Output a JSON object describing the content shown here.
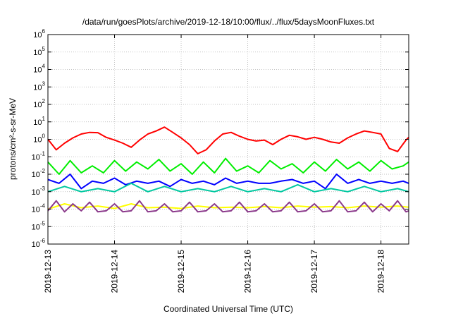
{
  "chart_data": {
    "type": "line",
    "title": "/data/run/goesPlots/archive/2019-12-18/10:00/flux/../flux/5daysMoonFluxes.txt",
    "xlabel": "Coordinated Universal Time (UTC)",
    "ylabel": "protons/cm²-s-sr-MeV",
    "y_scale": "log",
    "ylim": [
      1e-06,
      1000000.0
    ],
    "y_ticks": [
      {
        "base": "10",
        "exp": "-6",
        "value": 1e-06
      },
      {
        "base": "10",
        "exp": "-5",
        "value": 1e-05
      },
      {
        "base": "10",
        "exp": "-4",
        "value": 0.0001
      },
      {
        "base": "10",
        "exp": "-3",
        "value": 0.001
      },
      {
        "base": "10",
        "exp": "-2",
        "value": 0.01
      },
      {
        "base": "10",
        "exp": "-1",
        "value": 0.1
      },
      {
        "base": "10",
        "exp": "0",
        "value": 1
      },
      {
        "base": "10",
        "exp": "1",
        "value": 10
      },
      {
        "base": "10",
        "exp": "2",
        "value": 100
      },
      {
        "base": "10",
        "exp": "3",
        "value": 1000
      },
      {
        "base": "10",
        "exp": "4",
        "value": 10000
      },
      {
        "base": "10",
        "exp": "5",
        "value": 100000
      },
      {
        "base": "10",
        "exp": "6",
        "value": 1000000
      }
    ],
    "x_ticks": [
      "2019-12-13",
      "2019-12-14",
      "2019-12-15",
      "2019-12-16",
      "2019-12-17",
      "2019-12-18"
    ],
    "xlim": [
      "2019-12-13T00:00",
      "2019-12-18T10:00"
    ],
    "grid": true,
    "legend": "none",
    "series": [
      {
        "color": "#ff0000",
        "x": [
          "2019-12-13T00:00",
          "2019-12-13T03:00",
          "2019-12-13T06:00",
          "2019-12-13T09:00",
          "2019-12-13T12:00",
          "2019-12-13T15:00",
          "2019-12-13T18:00",
          "2019-12-13T21:00",
          "2019-12-14T00:00",
          "2019-12-14T03:00",
          "2019-12-14T06:00",
          "2019-12-14T09:00",
          "2019-12-14T12:00",
          "2019-12-14T15:00",
          "2019-12-14T18:00",
          "2019-12-14T21:00",
          "2019-12-15T00:00",
          "2019-12-15T03:00",
          "2019-12-15T06:00",
          "2019-12-15T09:00",
          "2019-12-15T12:00",
          "2019-12-15T15:00",
          "2019-12-15T18:00",
          "2019-12-15T21:00",
          "2019-12-16T00:00",
          "2019-12-16T03:00",
          "2019-12-16T06:00",
          "2019-12-16T09:00",
          "2019-12-16T12:00",
          "2019-12-16T15:00",
          "2019-12-16T18:00",
          "2019-12-16T21:00",
          "2019-12-17T00:00",
          "2019-12-17T03:00",
          "2019-12-17T06:00",
          "2019-12-17T09:00",
          "2019-12-17T12:00",
          "2019-12-17T15:00",
          "2019-12-17T18:00",
          "2019-12-17T21:00",
          "2019-12-18T00:00",
          "2019-12-18T03:00",
          "2019-12-18T06:00",
          "2019-12-18T09:00",
          "2019-12-18T10:00"
        ],
        "values": [
          1.0,
          0.25,
          0.6,
          1.2,
          2.0,
          2.5,
          2.4,
          1.3,
          0.9,
          0.6,
          0.35,
          0.9,
          2.0,
          3.0,
          5.0,
          2.5,
          1.2,
          0.5,
          0.15,
          0.25,
          0.8,
          2.0,
          2.5,
          1.5,
          1.0,
          0.8,
          0.9,
          0.5,
          1.0,
          1.7,
          1.4,
          1.0,
          1.3,
          1.0,
          0.7,
          0.6,
          1.2,
          2.0,
          3.0,
          2.5,
          2.0,
          0.3,
          0.2,
          0.9,
          1.3
        ]
      },
      {
        "color": "#00ee00",
        "x": [
          "2019-12-13T00:00",
          "2019-12-13T04:00",
          "2019-12-13T08:00",
          "2019-12-13T12:00",
          "2019-12-13T16:00",
          "2019-12-13T20:00",
          "2019-12-14T00:00",
          "2019-12-14T04:00",
          "2019-12-14T08:00",
          "2019-12-14T12:00",
          "2019-12-14T16:00",
          "2019-12-14T20:00",
          "2019-12-15T00:00",
          "2019-12-15T04:00",
          "2019-12-15T08:00",
          "2019-12-15T12:00",
          "2019-12-15T16:00",
          "2019-12-15T20:00",
          "2019-12-16T00:00",
          "2019-12-16T04:00",
          "2019-12-16T08:00",
          "2019-12-16T12:00",
          "2019-12-16T16:00",
          "2019-12-16T20:00",
          "2019-12-17T00:00",
          "2019-12-17T04:00",
          "2019-12-17T08:00",
          "2019-12-17T12:00",
          "2019-12-17T16:00",
          "2019-12-17T20:00",
          "2019-12-18T00:00",
          "2019-12-18T04:00",
          "2019-12-18T08:00",
          "2019-12-18T10:00"
        ],
        "values": [
          0.05,
          0.01,
          0.06,
          0.012,
          0.03,
          0.012,
          0.06,
          0.015,
          0.05,
          0.02,
          0.07,
          0.015,
          0.04,
          0.01,
          0.05,
          0.012,
          0.08,
          0.015,
          0.03,
          0.012,
          0.06,
          0.02,
          0.04,
          0.012,
          0.05,
          0.015,
          0.07,
          0.02,
          0.05,
          0.015,
          0.06,
          0.02,
          0.03,
          0.05
        ]
      },
      {
        "color": "#0000ff",
        "x": [
          "2019-12-13T00:00",
          "2019-12-13T04:00",
          "2019-12-13T08:00",
          "2019-12-13T12:00",
          "2019-12-13T16:00",
          "2019-12-13T20:00",
          "2019-12-14T00:00",
          "2019-12-14T04:00",
          "2019-12-14T08:00",
          "2019-12-14T12:00",
          "2019-12-14T16:00",
          "2019-12-14T20:00",
          "2019-12-15T00:00",
          "2019-12-15T04:00",
          "2019-12-15T08:00",
          "2019-12-15T12:00",
          "2019-12-15T16:00",
          "2019-12-15T20:00",
          "2019-12-16T00:00",
          "2019-12-16T04:00",
          "2019-12-16T08:00",
          "2019-12-16T12:00",
          "2019-12-16T16:00",
          "2019-12-16T20:00",
          "2019-12-17T00:00",
          "2019-12-17T04:00",
          "2019-12-17T08:00",
          "2019-12-17T12:00",
          "2019-12-17T16:00",
          "2019-12-17T20:00",
          "2019-12-18T00:00",
          "2019-12-18T04:00",
          "2019-12-18T08:00",
          "2019-12-18T10:00"
        ],
        "values": [
          0.005,
          0.003,
          0.01,
          0.0015,
          0.004,
          0.003,
          0.006,
          0.0025,
          0.004,
          0.003,
          0.004,
          0.002,
          0.005,
          0.003,
          0.004,
          0.0025,
          0.006,
          0.003,
          0.004,
          0.003,
          0.003,
          0.004,
          0.005,
          0.003,
          0.004,
          0.0015,
          0.01,
          0.003,
          0.005,
          0.003,
          0.004,
          0.003,
          0.004,
          0.003
        ]
      },
      {
        "color": "#00c8a0",
        "x": [
          "2019-12-13T00:00",
          "2019-12-13T06:00",
          "2019-12-13T12:00",
          "2019-12-13T18:00",
          "2019-12-14T00:00",
          "2019-12-14T06:00",
          "2019-12-14T12:00",
          "2019-12-14T18:00",
          "2019-12-15T00:00",
          "2019-12-15T06:00",
          "2019-12-15T12:00",
          "2019-12-15T18:00",
          "2019-12-16T00:00",
          "2019-12-16T06:00",
          "2019-12-16T12:00",
          "2019-12-16T18:00",
          "2019-12-17T00:00",
          "2019-12-17T06:00",
          "2019-12-17T12:00",
          "2019-12-17T18:00",
          "2019-12-18T00:00",
          "2019-12-18T06:00",
          "2019-12-18T10:00"
        ],
        "values": [
          0.001,
          0.002,
          0.001,
          0.0015,
          0.001,
          0.003,
          0.001,
          0.002,
          0.001,
          0.0015,
          0.001,
          0.002,
          0.001,
          0.0015,
          0.001,
          0.0025,
          0.001,
          0.0015,
          0.001,
          0.002,
          0.001,
          0.0015,
          0.001
        ]
      },
      {
        "color": "#ffff00",
        "x": [
          "2019-12-13T00:00",
          "2019-12-13T06:00",
          "2019-12-13T12:00",
          "2019-12-13T18:00",
          "2019-12-14T00:00",
          "2019-12-14T06:00",
          "2019-12-14T12:00",
          "2019-12-14T18:00",
          "2019-12-15T00:00",
          "2019-12-15T06:00",
          "2019-12-15T12:00",
          "2019-12-15T18:00",
          "2019-12-16T00:00",
          "2019-12-16T06:00",
          "2019-12-16T12:00",
          "2019-12-16T18:00",
          "2019-12-17T00:00",
          "2019-12-17T06:00",
          "2019-12-17T12:00",
          "2019-12-17T18:00",
          "2019-12-18T00:00",
          "2019-12-18T06:00",
          "2019-12-18T10:00"
        ],
        "values": [
          0.0001,
          0.0002,
          0.00012,
          0.00015,
          0.00011,
          0.0002,
          0.00012,
          0.00013,
          0.00011,
          0.00015,
          0.00012,
          0.00013,
          0.00012,
          0.00014,
          0.00012,
          0.00015,
          0.00013,
          0.00014,
          0.00012,
          0.00015,
          0.00013,
          0.00015,
          0.00013
        ]
      },
      {
        "color": "#8b3a8b",
        "x": [
          "2019-12-13T00:00",
          "2019-12-13T03:00",
          "2019-12-13T06:00",
          "2019-12-13T09:00",
          "2019-12-13T12:00",
          "2019-12-13T15:00",
          "2019-12-13T18:00",
          "2019-12-13T21:00",
          "2019-12-14T00:00",
          "2019-12-14T03:00",
          "2019-12-14T06:00",
          "2019-12-14T09:00",
          "2019-12-14T12:00",
          "2019-12-14T15:00",
          "2019-12-14T18:00",
          "2019-12-14T21:00",
          "2019-12-15T00:00",
          "2019-12-15T03:00",
          "2019-12-15T06:00",
          "2019-12-15T09:00",
          "2019-12-15T12:00",
          "2019-12-15T15:00",
          "2019-12-15T18:00",
          "2019-12-15T21:00",
          "2019-12-16T00:00",
          "2019-12-16T03:00",
          "2019-12-16T06:00",
          "2019-12-16T09:00",
          "2019-12-16T12:00",
          "2019-12-16T15:00",
          "2019-12-16T18:00",
          "2019-12-16T21:00",
          "2019-12-17T00:00",
          "2019-12-17T03:00",
          "2019-12-17T06:00",
          "2019-12-17T09:00",
          "2019-12-17T12:00",
          "2019-12-17T15:00",
          "2019-12-17T18:00",
          "2019-12-17T21:00",
          "2019-12-18T00:00",
          "2019-12-18T03:00",
          "2019-12-18T06:00",
          "2019-12-18T09:00",
          "2019-12-18T10:00"
        ],
        "values": [
          8e-05,
          0.0003,
          7e-05,
          0.0002,
          8e-05,
          0.00025,
          7e-05,
          8e-05,
          0.0002,
          7e-05,
          8e-05,
          0.0003,
          7e-05,
          8e-05,
          0.0002,
          7e-05,
          8e-05,
          0.00025,
          7e-05,
          8e-05,
          0.0002,
          7e-05,
          8e-05,
          0.00025,
          7e-05,
          8e-05,
          0.0002,
          7e-05,
          8e-05,
          0.00025,
          7e-05,
          8e-05,
          0.0002,
          7e-05,
          8e-05,
          0.0003,
          7e-05,
          8e-05,
          0.00025,
          7e-05,
          0.0002,
          8e-05,
          0.0003,
          7e-05,
          8e-05
        ]
      }
    ]
  }
}
